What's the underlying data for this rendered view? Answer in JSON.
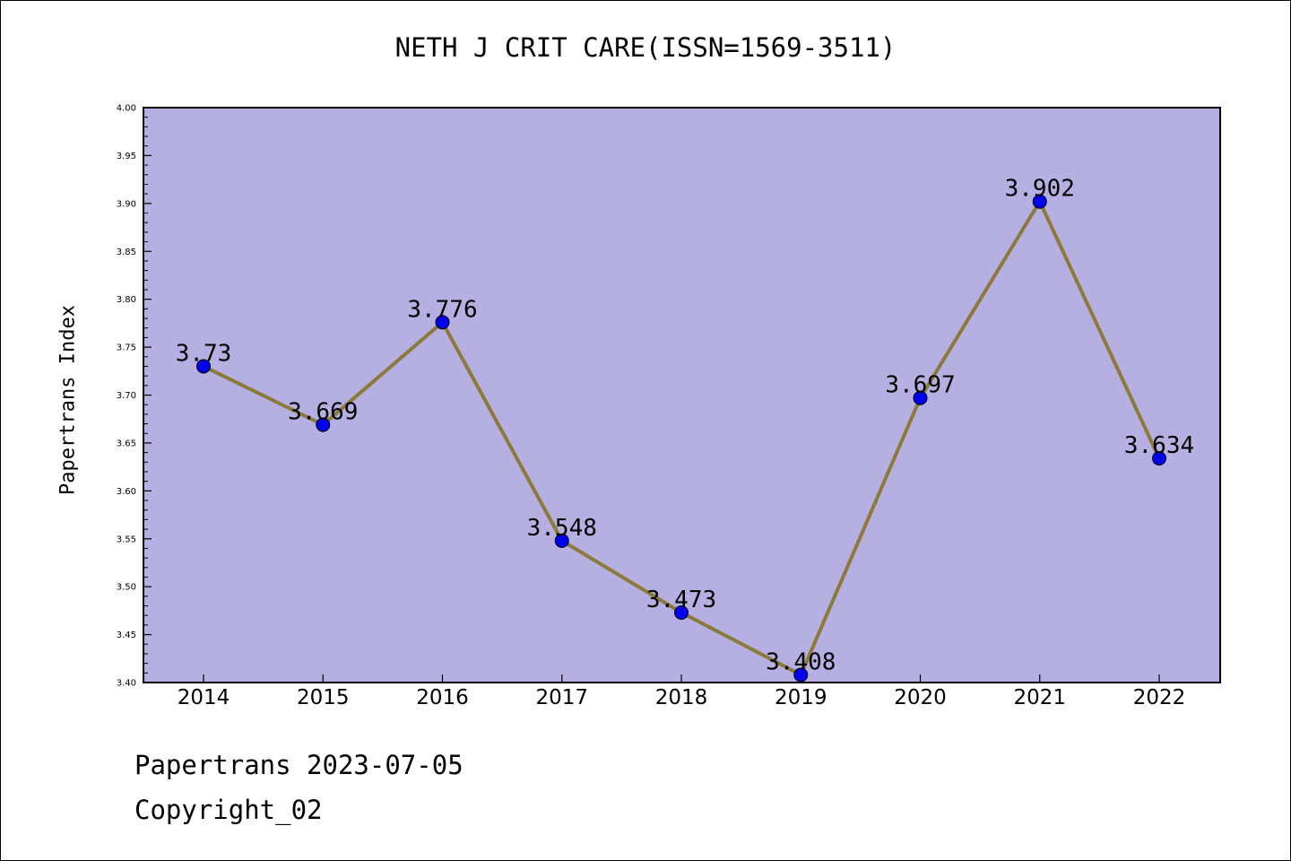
{
  "chart_data": {
    "type": "line",
    "title": "NETH J CRIT CARE(ISSN=1569-3511)",
    "xlabel": "",
    "ylabel": "Papertrans Index",
    "categories": [
      "2014",
      "2015",
      "2016",
      "2017",
      "2018",
      "2019",
      "2020",
      "2021",
      "2022"
    ],
    "values": [
      3.73,
      3.669,
      3.776,
      3.548,
      3.473,
      3.408,
      3.697,
      3.902,
      3.634
    ],
    "data_labels": [
      "3.73",
      "3.669",
      "3.776",
      "3.548",
      "3.473",
      "3.408",
      "3.697",
      "3.902",
      "3.634"
    ],
    "ylim": [
      3.4,
      4.0
    ],
    "yticks": [
      "3.40",
      "3.45",
      "3.50",
      "3.55",
      "3.60",
      "3.65",
      "3.70",
      "3.75",
      "3.80",
      "3.85",
      "3.90",
      "3.95",
      "4.00"
    ],
    "grid": false,
    "legend": "none",
    "colors": {
      "plot_background": "#b5afe2",
      "line": "#8b7a3a",
      "marker": "#0000ee"
    }
  },
  "footer": {
    "line1": "Papertrans 2023-07-05",
    "line2": "Copyright_02"
  }
}
